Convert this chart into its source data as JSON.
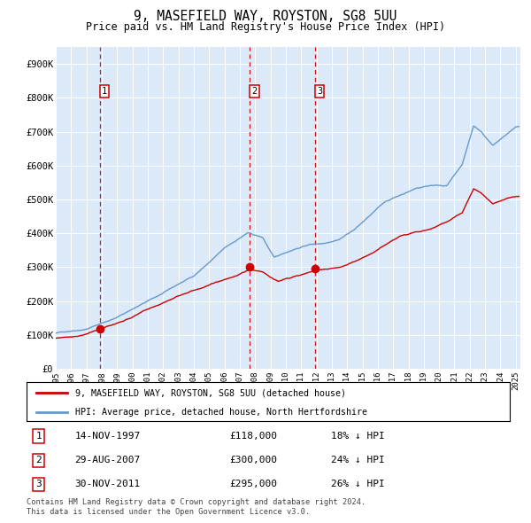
{
  "title1": "9, MASEFIELD WAY, ROYSTON, SG8 5UU",
  "title2": "Price paid vs. HM Land Registry's House Price Index (HPI)",
  "legend_red": "9, MASEFIELD WAY, ROYSTON, SG8 5UU (detached house)",
  "legend_blue": "HPI: Average price, detached house, North Hertfordshire",
  "sales": [
    {
      "label": "1",
      "date": "14-NOV-1997",
      "price": 118000,
      "hpi_pct": "18% ↓ HPI"
    },
    {
      "label": "2",
      "date": "29-AUG-2007",
      "price": 300000,
      "hpi_pct": "24% ↓ HPI"
    },
    {
      "label": "3",
      "date": "30-NOV-2011",
      "price": 295000,
      "hpi_pct": "26% ↓ HPI"
    }
  ],
  "footer1": "Contains HM Land Registry data © Crown copyright and database right 2024.",
  "footer2": "This data is licensed under the Open Government Licence v3.0.",
  "background_color": "#dce9f8",
  "plot_bg": "#dce9f8",
  "red_color": "#cc0000",
  "blue_color": "#6699cc",
  "ylim": [
    0,
    950000
  ],
  "yticks": [
    0,
    100000,
    200000,
    300000,
    400000,
    500000,
    600000,
    700000,
    800000,
    900000
  ],
  "ytick_labels": [
    "£0",
    "£100K",
    "£200K",
    "£300K",
    "£400K",
    "£500K",
    "£600K",
    "£700K",
    "£800K",
    "£900K"
  ],
  "blue_key_years": [
    1995.0,
    1997.0,
    1999.0,
    2000.0,
    2002.0,
    2004.0,
    2006.0,
    2007.5,
    2008.5,
    2009.25,
    2010.5,
    2011.5,
    2012.5,
    2013.5,
    2014.5,
    2015.5,
    2016.5,
    2017.5,
    2018.5,
    2019.5,
    2020.5,
    2021.5,
    2022.25,
    2022.75,
    2023.5,
    2024.5,
    2025.0
  ],
  "blue_key_vals": [
    105000,
    120000,
    155000,
    180000,
    225000,
    275000,
    355000,
    400000,
    385000,
    325000,
    350000,
    365000,
    370000,
    385000,
    415000,
    455000,
    495000,
    515000,
    535000,
    545000,
    545000,
    605000,
    720000,
    700000,
    660000,
    695000,
    710000
  ],
  "red_key_years": [
    1995.0,
    1996.5,
    1997.87,
    1999.5,
    2001.5,
    2003.5,
    2005.5,
    2006.5,
    2007.66,
    2008.5,
    2009.5,
    2010.5,
    2011.91,
    2013.5,
    2015.5,
    2017.5,
    2019.5,
    2021.5,
    2022.25,
    2022.75,
    2023.5,
    2024.5,
    2025.0
  ],
  "red_key_vals": [
    90000,
    100000,
    118000,
    145000,
    185000,
    228000,
    262000,
    278000,
    300000,
    292000,
    263000,
    278000,
    295000,
    305000,
    342000,
    398000,
    418000,
    462000,
    532000,
    518000,
    488000,
    508000,
    515000
  ],
  "sale_years": [
    1997.87,
    2007.66,
    2011.91
  ],
  "sale_prices": [
    118000,
    300000,
    295000
  ]
}
